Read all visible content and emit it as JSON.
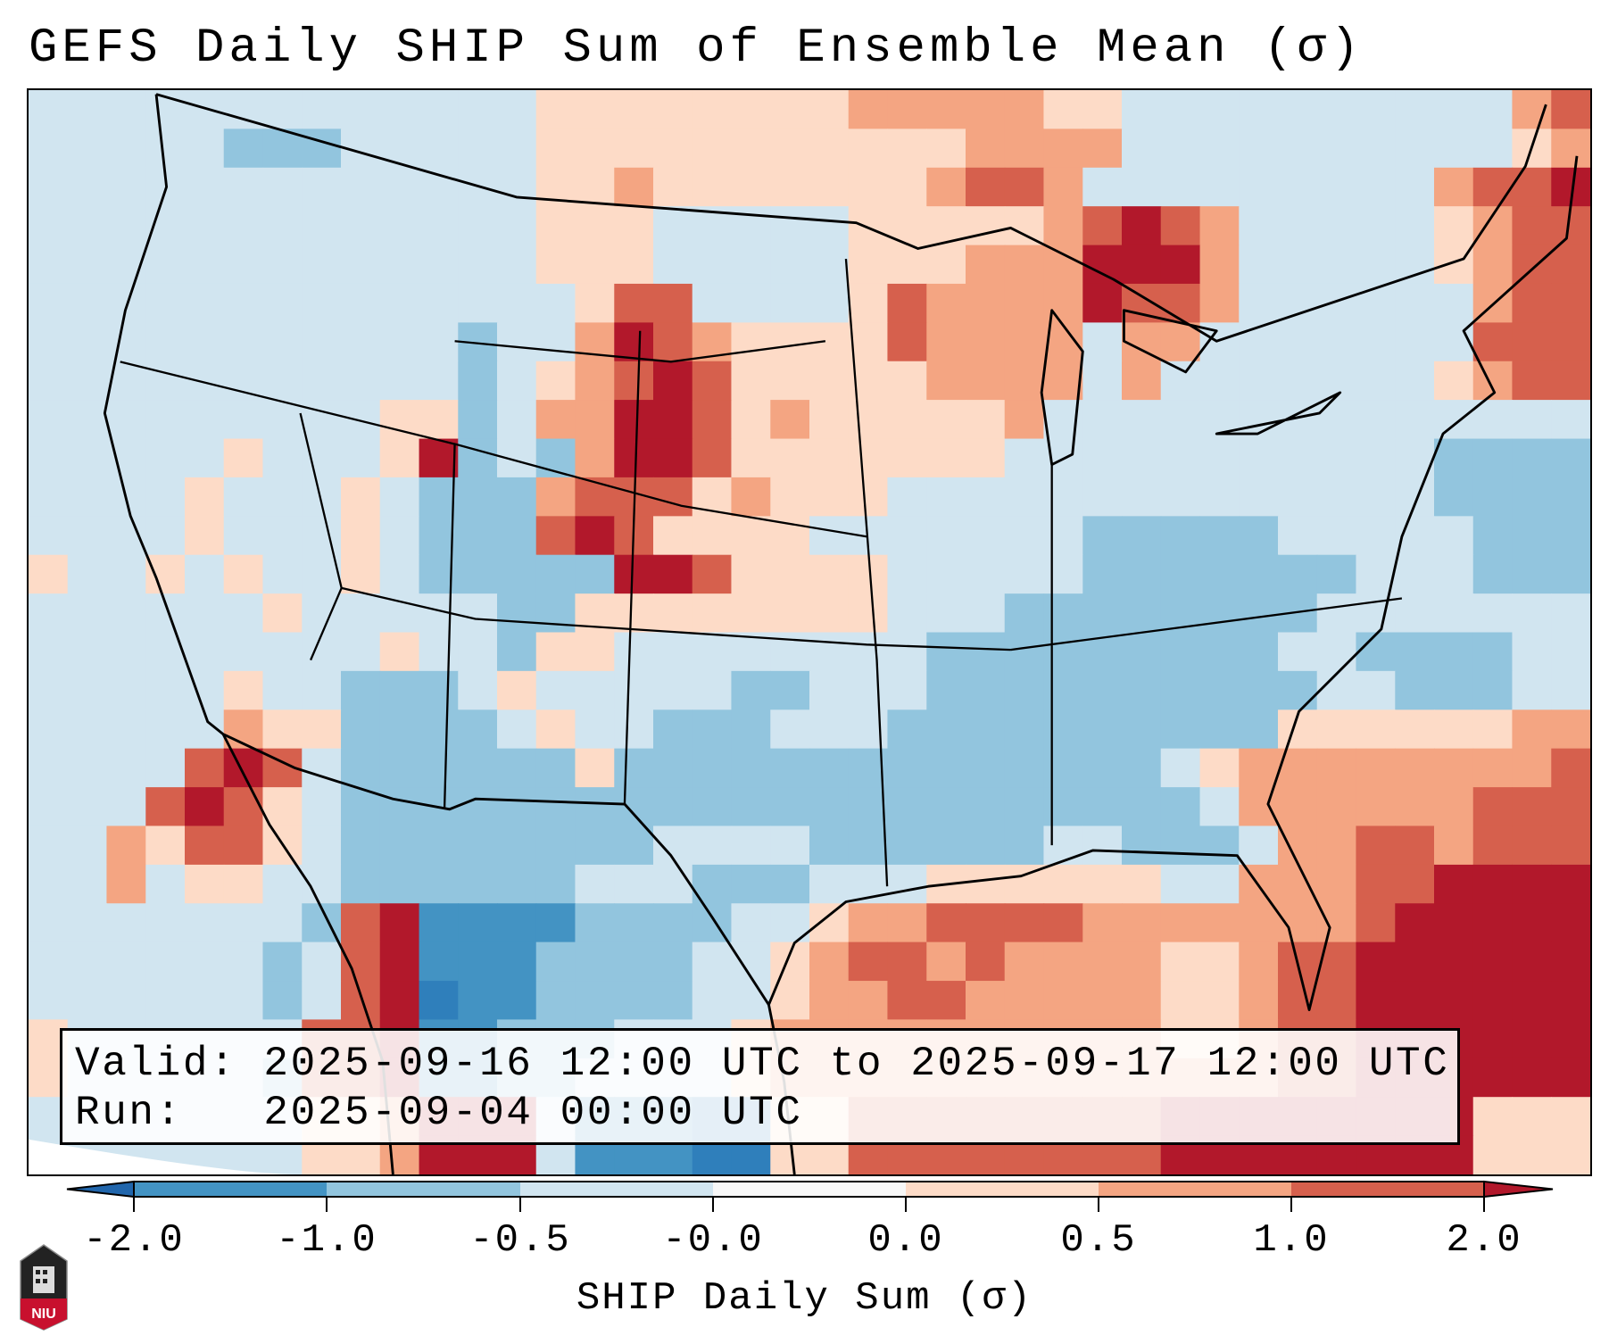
{
  "title": "GEFS Daily SHIP Sum of Ensemble Mean (σ)",
  "info_box": {
    "valid": "Valid: 2025-09-16 12:00 UTC to 2025-09-17 12:00 UTC",
    "run": "Run:   2025-09-04 00:00 UTC"
  },
  "colorbar": {
    "label": "SHIP Daily Sum (σ)",
    "ticks": [
      "-2.0",
      "-1.0",
      "-0.5",
      "-0.0",
      "0.0",
      "0.5",
      "1.0",
      "2.0"
    ],
    "colors": [
      "#4393c3",
      "#92c5de",
      "#d1e5f0",
      "#f7f7f7",
      "#fddbc7",
      "#f4a582",
      "#d6604d"
    ],
    "extend_low": "#2166ac",
    "extend_high": "#b2182b"
  },
  "logo_text": "NIU",
  "field_palette": {
    "a": "#2f7fbb",
    "b": "#4393c3",
    "c": "#92c5de",
    "d": "#d1e5f0",
    "e": "#fddbc7",
    "f": "#f4a582",
    "g": "#d6604d",
    "h": "#b2182b"
  },
  "field_grid": [
    "dddddddddddddeeeeeeeefffffeeddddddddddfgg",
    "dddddcccdddddeeeeeeeeeeeffffddddddddddefgh",
    "dddddddddddddeefeeeeeeefggfdddddddddfggh",
    "dddddddddddddeeedddddeeeeefghgfdddddefgg",
    "dddddddddddddeeedddddeeefffhhhfdddddefgg",
    "ddddddddddddddeggddddegffffhggfddddddfgg",
    "dddddddddddcddfhgfeeeegffffdffdddddddggg",
    "dddddddddddcdefghgeeeeeffffdfdddddddefgg",
    "dddddddddeecdffhhgefeeeeefdddddddddddddd",
    "dddddedddehcdcfhhgeeeeeeedddddddddddcccc",
    "ddddeddde dcccfggge feeeddddddddddddddcccc",
    "ddddedddedcccghgeeeedddddddcccccdddddccc",
    "eddededdedccccchhgeeeedddddcccccccdddccc",
    "ddddddeddd ddcceeeeeeeedddccccccccddddddd",
    "dddddddddeddceedddddddd cccccccccddccccdd",
    "dddddeddcccdedddddccdddccccccccccddcccdd",
    "dddddfeecccc deddcccdddcccccccccceeeeeeff",
    "ddddghgdcccccceccccccccccccccdeffffffffg",
    "dddghgedccccccccccccccccccccccdffffffggg",
    "ddfeggedccccccccddddccccccddcccdffggfggg",
    "ddfdeeddccccccdddcccdddeeeeeeddfffgghhhh",
    "dddddddcghbbbbccccddeffggggfffffffghhhhh",
    "ddddddcdghbbbccccddefggfgffffeefgghhhhhh",
    "ddddddcdghabbccccddeffggfffffeefgghhhhhh",
    "eddddddgghbbcccdddeffffffffffeefgghhhhhh",
    "edddddcgghbbccddddefffffffffffffgghhhhhh",
    "ddddddde efhhhdbbbaaeegggggggghhhhhhhheee",
    "dddddddeefhhhdbbbaaeegggggggghhhhhhhheee"
  ]
}
